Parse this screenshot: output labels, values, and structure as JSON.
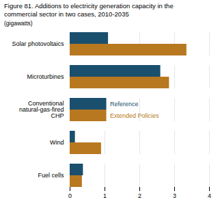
{
  "chart_data": {
    "type": "bar",
    "orientation": "horizontal",
    "title": "Figure 81. Additions to electricity generation capacity in the\ncommercial sector in two cases, 2010-2035",
    "subtitle": "(gigawatts)",
    "categories": [
      "Solar photovoltaics",
      "Microturbines",
      "Conventional\nnatural-gas-fired\nCHP",
      "Wind",
      "Fuel cells"
    ],
    "series": [
      {
        "name": "Reference",
        "color": "#1a4f6e",
        "values": [
          1.1,
          2.6,
          1.05,
          0.15,
          0.38
        ]
      },
      {
        "name": "Extended Policies",
        "color": "#b87820",
        "values": [
          3.35,
          2.85,
          1.05,
          0.9,
          0.35
        ]
      }
    ],
    "xlim": [
      0,
      4
    ],
    "xticks": [
      0,
      1,
      2,
      3,
      4
    ],
    "grid": true
  }
}
